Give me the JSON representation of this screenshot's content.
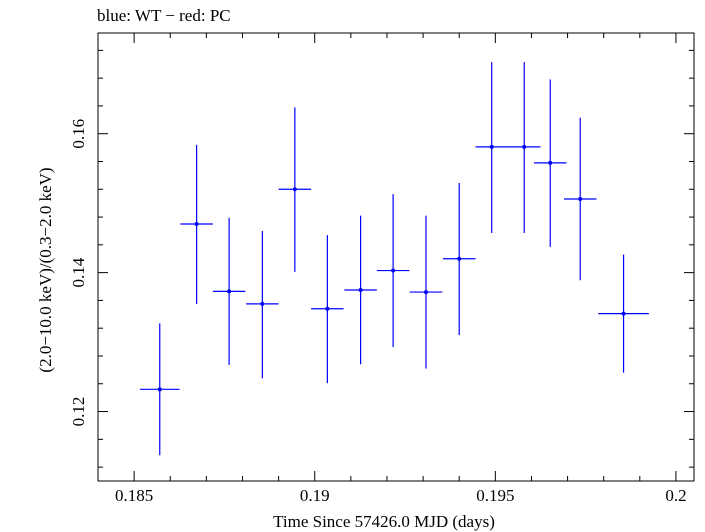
{
  "chart_data": {
    "type": "scatter",
    "title": "blue: WT − red: PC",
    "xlabel": "Time Since 57426.0 MJD (days)",
    "ylabel": "(2.0−10.0 keV)/(0.3−2.0 keV)",
    "xlim": [
      0.184,
      0.2005
    ],
    "ylim": [
      0.11,
      0.1745
    ],
    "xticks": [
      0.185,
      0.19,
      0.195,
      0.2
    ],
    "xtick_labels": [
      "0.185",
      "0.19",
      "0.195",
      "0.2"
    ],
    "yticks": [
      0.12,
      0.14,
      0.16
    ],
    "ytick_labels": [
      "0.12",
      "0.14",
      "0.16"
    ],
    "grid": false,
    "series": [
      {
        "color": "#0000ff",
        "points": [
          {
            "x": 0.18571,
            "xerr": 0.00055,
            "y": 0.1232,
            "ylo": 0.1137,
            "yhi": 0.1327
          },
          {
            "x": 0.18673,
            "xerr": 0.00045,
            "y": 0.147,
            "ylo": 0.1355,
            "yhi": 0.1584
          },
          {
            "x": 0.18763,
            "xerr": 0.00045,
            "y": 0.1373,
            "ylo": 0.1267,
            "yhi": 0.1479
          },
          {
            "x": 0.18855,
            "xerr": 0.00045,
            "y": 0.1355,
            "ylo": 0.1248,
            "yhi": 0.146
          },
          {
            "x": 0.18945,
            "xerr": 0.00045,
            "y": 0.152,
            "ylo": 0.1401,
            "yhi": 0.1638
          },
          {
            "x": 0.19035,
            "xerr": 0.00045,
            "y": 0.1348,
            "ylo": 0.1241,
            "yhi": 0.1454
          },
          {
            "x": 0.19127,
            "xerr": 0.00045,
            "y": 0.1375,
            "ylo": 0.1268,
            "yhi": 0.1482
          },
          {
            "x": 0.19217,
            "xerr": 0.00045,
            "y": 0.1403,
            "ylo": 0.1293,
            "yhi": 0.1513
          },
          {
            "x": 0.19308,
            "xerr": 0.00045,
            "y": 0.1372,
            "ylo": 0.1262,
            "yhi": 0.1482
          },
          {
            "x": 0.194,
            "xerr": 0.00045,
            "y": 0.142,
            "ylo": 0.131,
            "yhi": 0.1529
          },
          {
            "x": 0.1949,
            "xerr": 0.00045,
            "y": 0.1581,
            "ylo": 0.1457,
            "yhi": 0.1703
          },
          {
            "x": 0.1958,
            "xerr": 0.00045,
            "y": 0.1581,
            "ylo": 0.1457,
            "yhi": 0.1703
          },
          {
            "x": 0.19652,
            "xerr": 0.00045,
            "y": 0.1558,
            "ylo": 0.1437,
            "yhi": 0.1678
          },
          {
            "x": 0.19735,
            "xerr": 0.00045,
            "y": 0.1506,
            "ylo": 0.1389,
            "yhi": 0.1623
          },
          {
            "x": 0.19855,
            "xerr": 0.0007,
            "y": 0.1341,
            "ylo": 0.1256,
            "yhi": 0.1426
          }
        ]
      }
    ]
  }
}
